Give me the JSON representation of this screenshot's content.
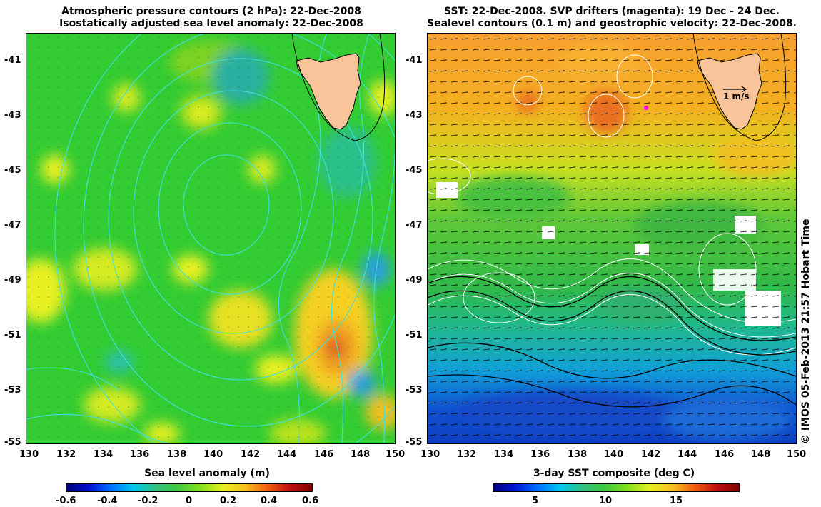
{
  "left_panel": {
    "title_line1": "Atmospheric pressure contours (2 hPa): 22-Dec-2008",
    "title_line2": "Isostatically adjusted sea level anomaly: 22-Dec-2008",
    "x_ticks": [
      "130",
      "132",
      "134",
      "136",
      "138",
      "140",
      "142",
      "144",
      "146",
      "148",
      "150"
    ],
    "y_ticks": [
      "-41",
      "-43",
      "-45",
      "-47",
      "-49",
      "-51",
      "-53",
      "-55"
    ],
    "colorbar_label": "Sea level anomaly (m)",
    "colorbar_ticks": [
      "-0.6",
      "-0.4",
      "-0.2",
      "0",
      "0.2",
      "0.4",
      "0.6"
    ],
    "colorbar_range": [
      -0.6,
      0.6
    ]
  },
  "right_panel": {
    "title_line1": "SST: 22-Dec-2008. SVP drifters (magenta): 19 Dec - 24 Dec.",
    "title_line2": "Sealevel contours (0.1 m) and geostrophic velocity: 22-Dec-2008.",
    "x_ticks": [
      "130",
      "132",
      "134",
      "136",
      "138",
      "140",
      "142",
      "144",
      "146",
      "148",
      "150"
    ],
    "y_ticks": [
      "-41",
      "-43",
      "-45",
      "-47",
      "-49",
      "-51",
      "-53",
      "-55"
    ],
    "colorbar_label": "3-day SST composite (deg C)",
    "colorbar_ticks": [
      "5",
      "10",
      "15"
    ],
    "colorbar_range": [
      2,
      19.5
    ],
    "scale_arrow_label": "1 m/s"
  },
  "extent": {
    "lon": [
      130,
      150
    ],
    "lat": [
      -55,
      -40.2
    ]
  },
  "credit": "© IMOS 05-Feb-2013 21:57 Hobart Time",
  "colors": {
    "land": "#f9c49a",
    "pressure_contour": "#40e0e0",
    "sealevel_contour": "#ffffff",
    "sla_base": "#33cc33",
    "drifter": "#ff00ff"
  }
}
